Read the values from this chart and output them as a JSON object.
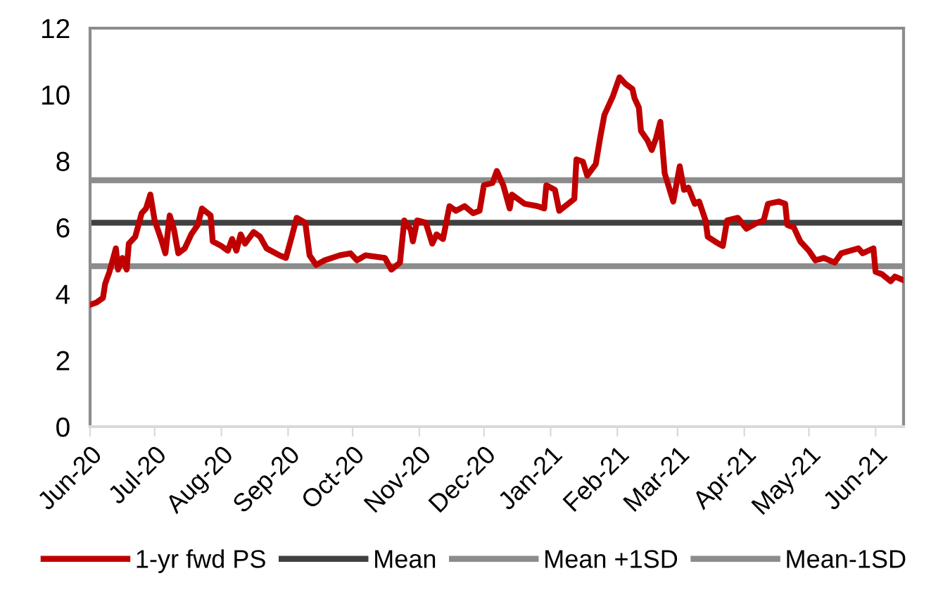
{
  "chart_data": {
    "type": "line",
    "x": [
      "2020-06-01",
      "2020-06-04",
      "2020-06-07",
      "2020-06-08",
      "2020-06-10",
      "2020-06-13",
      "2020-06-14",
      "2020-06-16",
      "2020-06-18",
      "2020-06-19",
      "2020-06-22",
      "2020-06-25",
      "2020-06-27",
      "2020-06-29",
      "2020-07-01",
      "2020-07-04",
      "2020-07-06",
      "2020-07-08",
      "2020-07-10",
      "2020-07-12",
      "2020-07-15",
      "2020-07-18",
      "2020-07-21",
      "2020-07-23",
      "2020-07-27",
      "2020-07-28",
      "2020-08-01",
      "2020-08-04",
      "2020-08-06",
      "2020-08-08",
      "2020-08-10",
      "2020-08-12",
      "2020-08-16",
      "2020-08-19",
      "2020-08-22",
      "2020-08-28",
      "2020-08-31",
      "2020-09-03",
      "2020-09-05",
      "2020-09-09",
      "2020-09-11",
      "2020-09-14",
      "2020-09-18",
      "2020-09-25",
      "2020-09-30",
      "2020-10-03",
      "2020-10-07",
      "2020-10-16",
      "2020-10-19",
      "2020-10-23",
      "2020-10-25",
      "2020-10-28",
      "2020-10-29",
      "2020-10-31",
      "2020-11-04",
      "2020-11-07",
      "2020-11-09",
      "2020-11-12",
      "2020-11-15",
      "2020-11-18",
      "2020-11-22",
      "2020-11-26",
      "2020-11-29",
      "2020-12-01",
      "2020-12-05",
      "2020-12-07",
      "2020-12-10",
      "2020-12-13",
      "2020-12-14",
      "2020-12-20",
      "2020-12-26",
      "2020-12-29",
      "2020-12-30",
      "2021-01-03",
      "2021-01-05",
      "2021-01-12",
      "2021-01-13",
      "2021-01-16",
      "2021-01-18",
      "2021-01-22",
      "2021-01-24",
      "2021-01-26",
      "2021-01-30",
      "2021-02-02",
      "2021-02-05",
      "2021-02-08",
      "2021-02-09",
      "2021-02-11",
      "2021-02-12",
      "2021-02-15",
      "2021-02-17",
      "2021-02-19",
      "2021-02-21",
      "2021-02-23",
      "2021-02-27",
      "2021-03-02",
      "2021-03-04",
      "2021-03-06",
      "2021-03-09",
      "2021-03-11",
      "2021-03-14",
      "2021-03-15",
      "2021-03-20",
      "2021-03-22",
      "2021-03-24",
      "2021-03-29",
      "2021-04-02",
      "2021-04-07",
      "2021-04-10",
      "2021-04-12",
      "2021-04-17",
      "2021-04-20",
      "2021-04-21",
      "2021-04-24",
      "2021-04-27",
      "2021-05-01",
      "2021-05-04",
      "2021-05-08",
      "2021-05-13",
      "2021-05-16",
      "2021-05-24",
      "2021-05-26",
      "2021-05-31",
      "2021-06-01",
      "2021-06-04",
      "2021-06-08",
      "2021-06-10",
      "2021-06-14"
    ],
    "series": [
      {
        "name": "1-yr fwd PS",
        "color": "#c00000",
        "values": [
          3.67,
          3.74,
          3.88,
          4.3,
          4.66,
          5.37,
          4.73,
          5.08,
          4.73,
          5.51,
          5.72,
          6.43,
          6.57,
          6.99,
          6.21,
          5.65,
          5.22,
          6.36,
          5.93,
          5.22,
          5.37,
          5.79,
          6.07,
          6.57,
          6.36,
          5.58,
          5.44,
          5.3,
          5.65,
          5.3,
          5.79,
          5.51,
          5.86,
          5.72,
          5.37,
          5.16,
          5.08,
          5.79,
          6.29,
          6.14,
          5.16,
          4.87,
          5.01,
          5.16,
          5.22,
          5.01,
          5.16,
          5.08,
          4.73,
          4.94,
          6.21,
          5.93,
          5.58,
          6.21,
          6.14,
          5.51,
          5.79,
          5.65,
          6.64,
          6.5,
          6.64,
          6.43,
          6.5,
          7.27,
          7.34,
          7.7,
          7.27,
          6.57,
          6.99,
          6.71,
          6.64,
          6.57,
          7.27,
          7.13,
          6.5,
          6.86,
          8.05,
          7.98,
          7.56,
          7.91,
          8.69,
          9.39,
          9.96,
          10.52,
          10.31,
          10.17,
          9.89,
          9.61,
          8.9,
          8.62,
          8.33,
          8.69,
          9.18,
          7.63,
          6.78,
          7.84,
          7.13,
          7.2,
          6.71,
          6.78,
          6.21,
          5.72,
          5.51,
          5.44,
          6.21,
          6.29,
          5.96,
          6.14,
          6.21,
          6.71,
          6.78,
          6.71,
          6.07,
          6.0,
          5.58,
          5.3,
          5.01,
          5.08,
          4.94,
          5.22,
          5.37,
          5.22,
          5.37,
          4.66,
          4.59,
          4.38,
          4.52,
          4.41
        ]
      }
    ],
    "ref_lines": [
      {
        "axis": "y",
        "value": 6.14,
        "label": "Mean",
        "color": "#404040"
      },
      {
        "axis": "y",
        "value": 7.42,
        "label": "Mean +1SD",
        "color": "#8c8c8c"
      },
      {
        "axis": "y",
        "value": 4.83,
        "label": "Mean-1SD",
        "color": "#8c8c8c"
      }
    ],
    "xlim": [
      "2020-06-01",
      "2021-06-14"
    ],
    "xticks": [
      {
        "value": "2020-06-01",
        "label": "Jun-20"
      },
      {
        "value": "2020-07-01",
        "label": "Jul-20"
      },
      {
        "value": "2020-08-01",
        "label": "Aug-20"
      },
      {
        "value": "2020-09-01",
        "label": "Sep-20"
      },
      {
        "value": "2020-10-01",
        "label": "Oct-20"
      },
      {
        "value": "2020-11-01",
        "label": "Nov-20"
      },
      {
        "value": "2020-12-01",
        "label": "Dec-20"
      },
      {
        "value": "2021-01-01",
        "label": "Jan-21"
      },
      {
        "value": "2021-02-01",
        "label": "Feb-21"
      },
      {
        "value": "2021-03-01",
        "label": "Mar-21"
      },
      {
        "value": "2021-04-01",
        "label": "Apr-21"
      },
      {
        "value": "2021-05-01",
        "label": "May-21"
      },
      {
        "value": "2021-06-01",
        "label": "Jun-21"
      }
    ],
    "ylim": [
      0,
      12
    ],
    "yticks": [
      0,
      2,
      4,
      6,
      8,
      10,
      12
    ],
    "grid": false,
    "legend": "bottom",
    "line_style": "solid"
  }
}
